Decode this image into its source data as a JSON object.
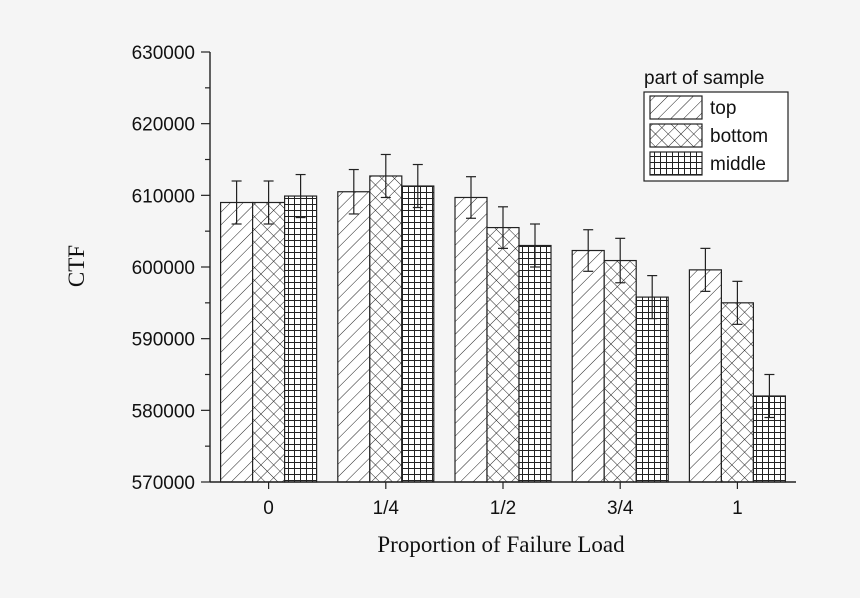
{
  "chart_data": {
    "type": "bar",
    "categories": [
      "0",
      "1/4",
      "1/2",
      "3/4",
      "1"
    ],
    "xlabel": "Proportion of Failure Load",
    "ylabel": "CTF",
    "ylim": [
      570000,
      630000
    ],
    "yticks": [
      "570000",
      "580000",
      "590000",
      "600000",
      "610000",
      "620000",
      "630000"
    ],
    "grid": false,
    "legend": {
      "title": "part of sample",
      "position": "top-right"
    },
    "series": [
      {
        "name": "top",
        "pattern": "diagonal-hatch",
        "values": [
          609000,
          610500,
          609700,
          602300,
          599600
        ],
        "errors": [
          3000,
          3100,
          2900,
          2900,
          3000
        ]
      },
      {
        "name": "bottom",
        "pattern": "cross-hatch",
        "values": [
          609000,
          612700,
          605500,
          600900,
          595000
        ],
        "errors": [
          3000,
          3000,
          2900,
          3100,
          3000
        ]
      },
      {
        "name": "middle",
        "pattern": "grid",
        "values": [
          609900,
          611300,
          603000,
          595800,
          582000
        ],
        "errors": [
          3000,
          3000,
          3000,
          3000,
          3000
        ]
      }
    ]
  }
}
